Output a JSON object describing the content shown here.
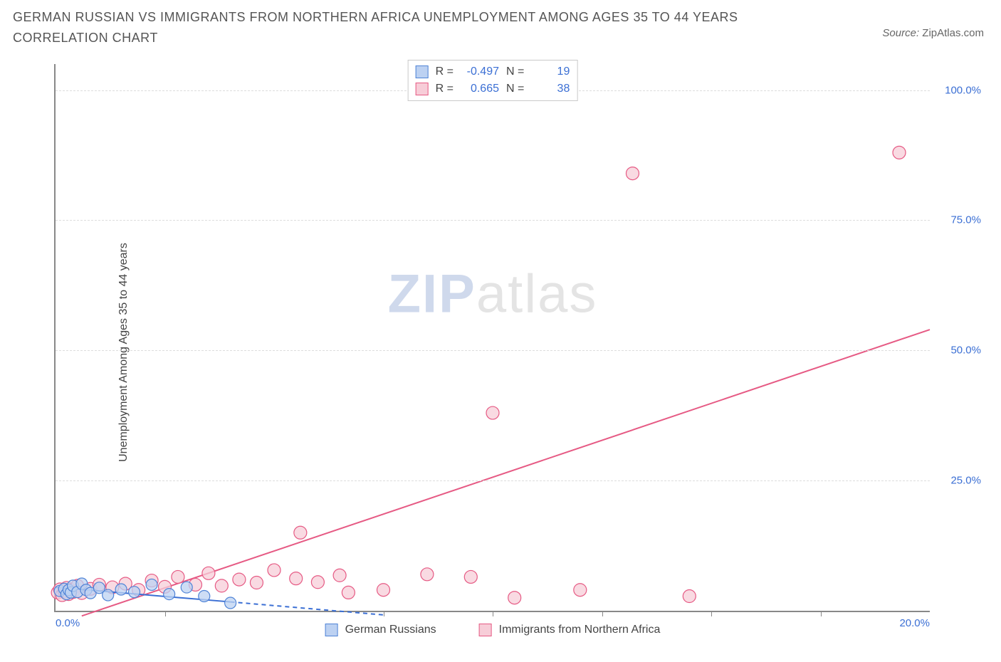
{
  "title": "GERMAN RUSSIAN VS IMMIGRANTS FROM NORTHERN AFRICA UNEMPLOYMENT AMONG AGES 35 TO 44 YEARS CORRELATION CHART",
  "source_prefix": "Source: ",
  "source_name": "ZipAtlas.com",
  "ylabel": "Unemployment Among Ages 35 to 44 years",
  "watermark_a": "ZIP",
  "watermark_b": "atlas",
  "chart": {
    "type": "scatter",
    "xlim": [
      0,
      20
    ],
    "ylim": [
      0,
      105
    ],
    "xticks": [
      0,
      5,
      10,
      15,
      20
    ],
    "xtick_labels": [
      "0.0%",
      "",
      "",
      "",
      "20.0%"
    ],
    "xtick_minor": [
      2.5,
      7.5,
      10.0,
      12.5,
      15.0,
      17.5
    ],
    "yticks": [
      25,
      50,
      75,
      100
    ],
    "ytick_labels": [
      "25.0%",
      "50.0%",
      "75.0%",
      "100.0%"
    ],
    "grid_color": "#dddddd",
    "background_color": "#ffffff",
    "axis_color": "#888888",
    "tick_label_color": "#3b6fd4"
  },
  "series": {
    "blue": {
      "label": "German Russians",
      "R_value": "-0.497",
      "N_value": "19",
      "marker_fill": "#bcd1f2",
      "marker_stroke": "#4f83d6",
      "marker_radius": 8,
      "line_color": "#3b6fd4",
      "line_solid": {
        "x1": 0.0,
        "y1": 4.5,
        "x2": 4.0,
        "y2": 1.7
      },
      "line_dash": {
        "x1": 4.0,
        "y1": 1.7,
        "x2": 7.5,
        "y2": -0.8
      },
      "points": [
        [
          0.1,
          3.8
        ],
        [
          0.2,
          4.2
        ],
        [
          0.25,
          3.2
        ],
        [
          0.3,
          4.0
        ],
        [
          0.35,
          3.5
        ],
        [
          0.4,
          4.8
        ],
        [
          0.5,
          3.6
        ],
        [
          0.6,
          5.2
        ],
        [
          0.7,
          4.0
        ],
        [
          0.8,
          3.4
        ],
        [
          1.0,
          4.4
        ],
        [
          1.2,
          3.0
        ],
        [
          1.5,
          4.1
        ],
        [
          1.8,
          3.6
        ],
        [
          2.2,
          5.0
        ],
        [
          2.6,
          3.2
        ],
        [
          3.0,
          4.5
        ],
        [
          3.4,
          2.8
        ],
        [
          4.0,
          1.5
        ]
      ]
    },
    "pink": {
      "label": "Immigrants from Northern Africa",
      "R_value": "0.665",
      "N_value": "38",
      "marker_fill": "#f7cdd8",
      "marker_stroke": "#e65a84",
      "marker_radius": 9,
      "line_color": "#e65a84",
      "line_solid": {
        "x1": 0.6,
        "y1": -1.0,
        "x2": 20.0,
        "y2": 54.0
      },
      "points": [
        [
          0.05,
          3.5
        ],
        [
          0.1,
          4.1
        ],
        [
          0.15,
          3.0
        ],
        [
          0.2,
          3.8
        ],
        [
          0.25,
          4.4
        ],
        [
          0.3,
          3.2
        ],
        [
          0.35,
          4.0
        ],
        [
          0.4,
          3.6
        ],
        [
          0.5,
          4.8
        ],
        [
          0.6,
          3.4
        ],
        [
          0.8,
          4.2
        ],
        [
          1.0,
          5.0
        ],
        [
          1.3,
          4.5
        ],
        [
          1.6,
          5.2
        ],
        [
          1.9,
          4.0
        ],
        [
          2.2,
          5.8
        ],
        [
          2.5,
          4.6
        ],
        [
          2.8,
          6.5
        ],
        [
          3.2,
          5.0
        ],
        [
          3.5,
          7.2
        ],
        [
          3.8,
          4.8
        ],
        [
          4.2,
          6.0
        ],
        [
          4.6,
          5.4
        ],
        [
          5.0,
          7.8
        ],
        [
          5.5,
          6.2
        ],
        [
          5.6,
          15.0
        ],
        [
          6.0,
          5.5
        ],
        [
          6.5,
          6.8
        ],
        [
          6.7,
          3.5
        ],
        [
          7.5,
          4.0
        ],
        [
          8.5,
          7.0
        ],
        [
          9.5,
          6.5
        ],
        [
          10.0,
          38.0
        ],
        [
          10.5,
          2.5
        ],
        [
          12.0,
          4.0
        ],
        [
          13.2,
          84.0
        ],
        [
          14.5,
          2.8
        ],
        [
          19.3,
          88.0
        ]
      ]
    }
  },
  "legend_box": {
    "R_label": "R =",
    "N_label": "N ="
  }
}
